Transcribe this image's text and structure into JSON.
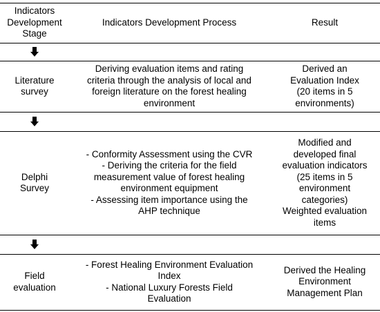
{
  "table": {
    "header": [
      [
        "Indicators",
        "Development",
        "Stage"
      ],
      [
        "Indicators Development Process"
      ],
      [
        "Result"
      ]
    ],
    "rows": [
      {
        "cells": [
          [
            "Literature",
            "survey"
          ],
          [
            "Deriving evaluation items and rating",
            "criteria through the analysis of local and",
            "foreign literature on the forest healing",
            "environment"
          ],
          [
            "Derived an",
            "Evaluation Index",
            "(20 items in 5",
            "environments)"
          ]
        ]
      },
      {
        "cells": [
          [
            "Delphi",
            "Survey"
          ],
          [
            "- Conformity Assessment using the CVR",
            "- Deriving the criteria for the field",
            "measurement value of forest healing",
            "environment equipment",
            "- Assessing item importance using the",
            "AHP technique"
          ],
          [
            "Modified and",
            "developed final",
            "evaluation indicators",
            "(25 items in 5",
            "environment",
            "categories)",
            "Weighted evaluation",
            "items"
          ]
        ]
      },
      {
        "cells": [
          [
            "Field",
            "evaluation"
          ],
          [
            "- Forest Healing Environment Evaluation",
            "Index",
            "- National Luxury Forests Field",
            "Evaluation"
          ],
          [
            "Derived the Healing",
            "Environment",
            "Management Plan"
          ]
        ]
      }
    ]
  }
}
